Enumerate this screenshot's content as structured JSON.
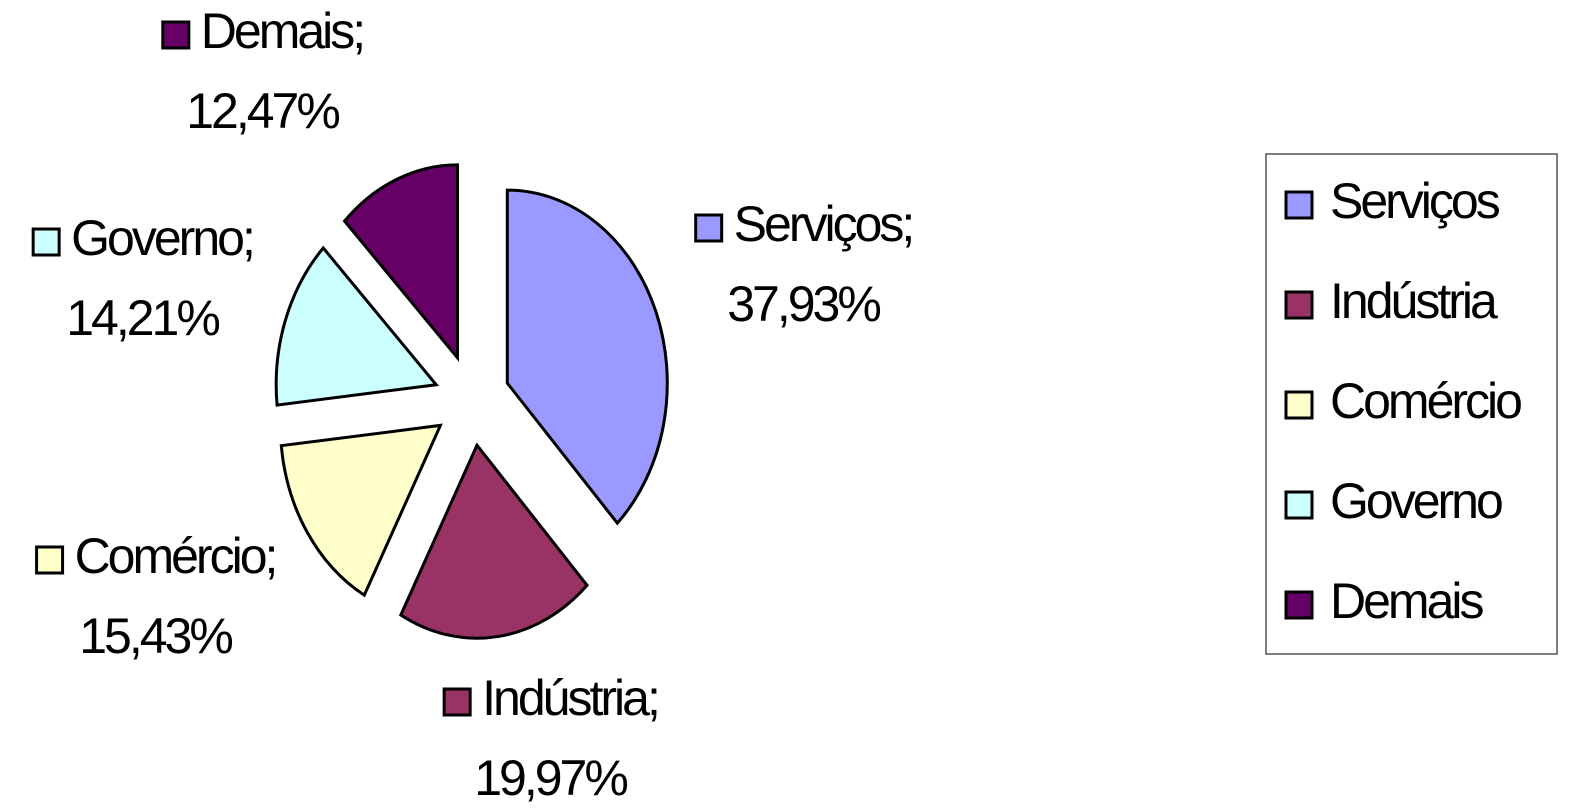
{
  "chart_data": {
    "type": "pie",
    "categories": [
      "Serviços",
      "Indústria",
      "Comércio",
      "Governo",
      "Demais"
    ],
    "values": [
      37.93,
      19.97,
      15.43,
      14.21,
      12.47
    ],
    "value_labels": [
      "37,93%",
      "19,97%",
      "15,43%",
      "14,21%",
      "12,47%"
    ],
    "label_separator": ";",
    "colors": [
      "#9999ff",
      "#993366",
      "#ffffcc",
      "#ccffff",
      "#660066"
    ],
    "legend": "right"
  }
}
